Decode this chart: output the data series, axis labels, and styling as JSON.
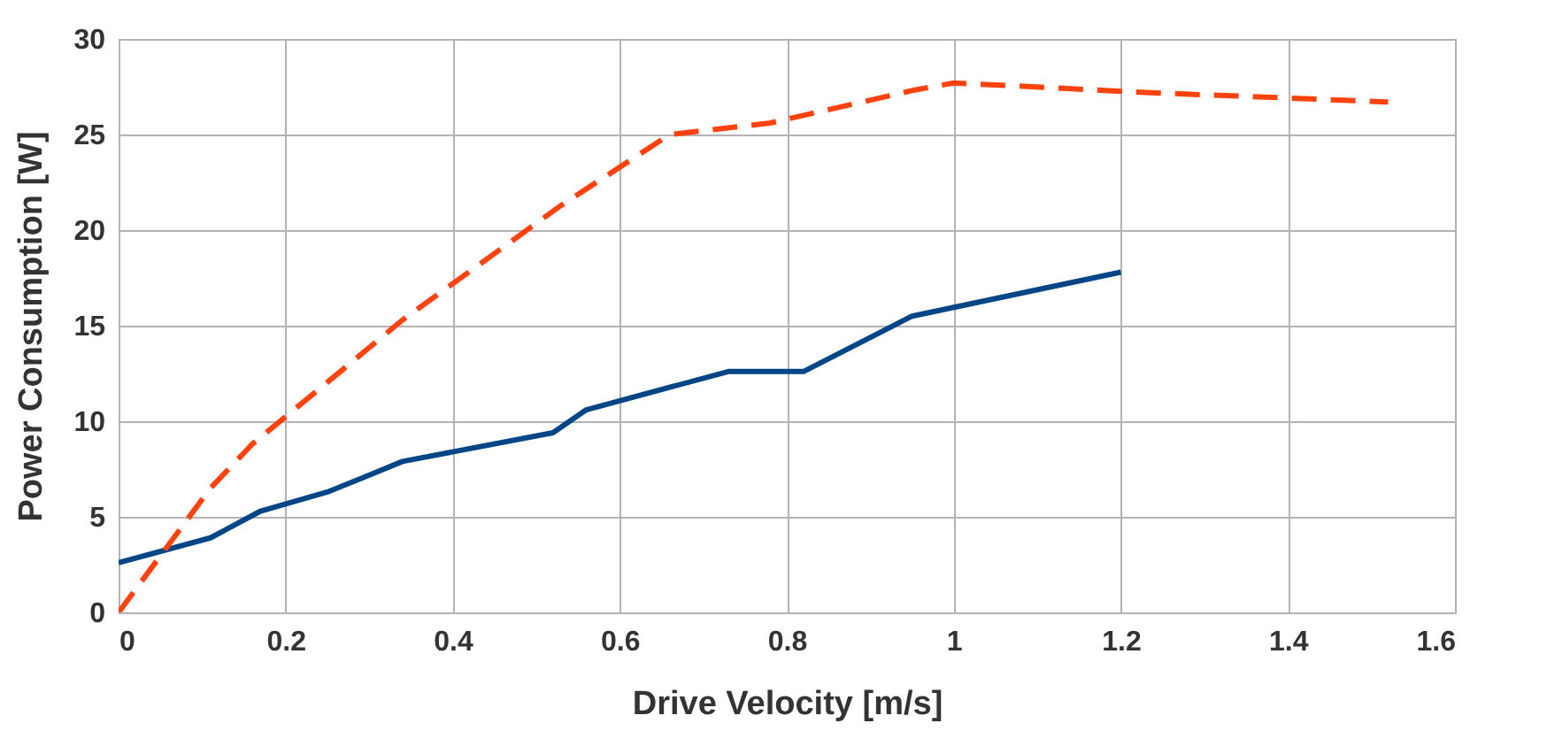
{
  "chart_data": {
    "type": "line",
    "xlabel": "Drive Velocity [m/s]",
    "ylabel": "Power Consumption [W]",
    "xlim": [
      0,
      1.6
    ],
    "xticks": [
      0,
      0.2,
      0.4,
      0.6,
      0.8,
      1,
      1.2,
      1.4,
      1.6
    ],
    "ylim": [
      0,
      30
    ],
    "yticks": [
      0,
      5,
      10,
      15,
      20,
      25,
      30
    ],
    "grid": true,
    "marker": "none",
    "series": [
      {
        "color": "#004586",
        "line_style": "solid",
        "x": [
          0,
          0.11,
          0.17,
          0.25,
          0.29,
          0.34,
          0.52,
          0.56,
          0.73,
          0.82,
          0.95,
          1.2
        ],
        "values": [
          2.6,
          3.9,
          5.3,
          6.3,
          7.0,
          7.9,
          9.4,
          10.6,
          12.6,
          12.6,
          15.5,
          17.8
        ]
      },
      {
        "color": "#ff420e",
        "line_style": "dashed",
        "x": [
          0,
          0.11,
          0.16,
          0.26,
          0.34,
          0.53,
          0.66,
          0.78,
          0.95,
          1.0,
          1.23,
          1.52
        ],
        "values": [
          0,
          6.5,
          8.8,
          12.4,
          15.3,
          21.3,
          25,
          25.6,
          27.3,
          27.7,
          27.2,
          26.7
        ]
      }
    ]
  }
}
